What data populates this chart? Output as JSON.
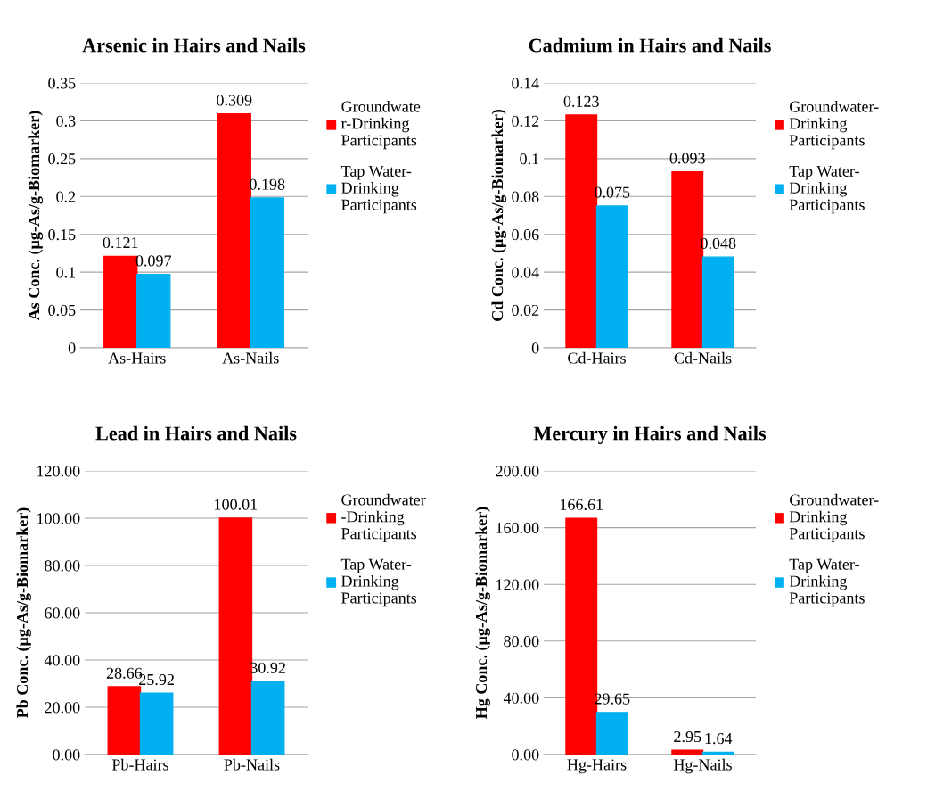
{
  "chart_data": [
    {
      "type": "bar",
      "title": "Arsenic in Hairs and Nails",
      "ylabel": "As Conc. (µg-As/g-Biomarker)",
      "categories": [
        "As-Hairs",
        "As-Nails"
      ],
      "series": [
        {
          "name": "Groundwate\nr-Drinking\nParticipants",
          "color": "#ff0000",
          "values": [
            0.121,
            0.309
          ]
        },
        {
          "name": "Tap Water-\nDrinking\nParticipants",
          "color": "#00b0f0",
          "values": [
            0.097,
            0.198
          ]
        }
      ],
      "ylim": [
        0,
        0.35
      ],
      "yticks": [
        0,
        0.05,
        0.1,
        0.15,
        0.2,
        0.25,
        0.3,
        0.35
      ],
      "grid": "y",
      "legend": "right",
      "data_labels": true
    },
    {
      "type": "bar",
      "title": "Cadmium in Hairs and Nails",
      "ylabel": "Cd Conc. (µg-As/g-Biomarker)",
      "categories": [
        "Cd-Hairs",
        "Cd-Nails"
      ],
      "series": [
        {
          "name": "Groundwater-\nDrinking\nParticipants",
          "color": "#ff0000",
          "values": [
            0.123,
            0.093
          ]
        },
        {
          "name": "Tap Water-\nDrinking\nParticipants",
          "color": "#00b0f0",
          "values": [
            0.075,
            0.048
          ]
        }
      ],
      "ylim": [
        0,
        0.14
      ],
      "yticks": [
        0,
        0.02,
        0.04,
        0.06,
        0.08,
        0.1,
        0.12,
        0.14
      ],
      "grid": "y",
      "legend": "right",
      "data_labels": true
    },
    {
      "type": "bar",
      "title": "Lead in Hairs and Nails",
      "ylabel": "Pb Conc. (µg-As/g-Biomarker)",
      "categories": [
        "Pb-Hairs",
        "Pb-Nails"
      ],
      "series": [
        {
          "name": "Groundwater\n-Drinking\nParticipants",
          "color": "#ff0000",
          "values": [
            28.66,
            100.01
          ]
        },
        {
          "name": "Tap Water-\nDrinking\nParticipants",
          "color": "#00b0f0",
          "values": [
            25.92,
            30.92
          ]
        }
      ],
      "ylim": [
        0,
        120
      ],
      "yticks": [
        {
          "value": 0,
          "label": "0.00"
        },
        {
          "value": 20,
          "label": "20.00"
        },
        {
          "value": 40,
          "label": "40.00"
        },
        {
          "value": 60,
          "label": "60.00"
        },
        {
          "value": 80,
          "label": "80.00"
        },
        {
          "value": 100,
          "label": "100.00"
        },
        {
          "value": 120,
          "label": "120.00"
        }
      ],
      "grid": "y",
      "legend": "right",
      "data_labels": true
    },
    {
      "type": "bar",
      "title": "Mercury in Hairs and Nails",
      "ylabel": "Hg Conc. (µg-As/g-Biomarker)",
      "categories": [
        "Hg-Hairs",
        "Hg-Nails"
      ],
      "series": [
        {
          "name": "Groundwater-\nDrinking\nParticipants",
          "color": "#ff0000",
          "values": [
            166.61,
            2.95
          ]
        },
        {
          "name": "Tap Water-\nDrinking\nParticipants",
          "color": "#00b0f0",
          "values": [
            29.65,
            1.64
          ]
        }
      ],
      "ylim": [
        0,
        200
      ],
      "yticks": [
        {
          "value": 0,
          "label": "0.00"
        },
        {
          "value": 40,
          "label": "40.00"
        },
        {
          "value": 80,
          "label": "80.00"
        },
        {
          "value": 120,
          "label": "120.00"
        },
        {
          "value": 160,
          "label": "160.00"
        },
        {
          "value": 200,
          "label": "200.00"
        }
      ],
      "grid": "y",
      "legend": "right",
      "data_labels": true
    }
  ]
}
